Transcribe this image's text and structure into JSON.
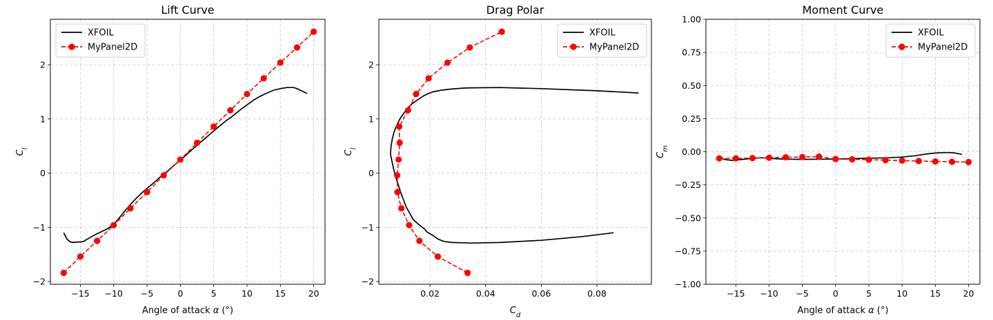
{
  "chart_data": [
    {
      "type": "line",
      "title": "Lift Curve",
      "xlabel": "Angle of attack α (°)",
      "ylabel": "C_l",
      "xlim": [
        -19.5,
        21.7
      ],
      "ylim": [
        -2.05,
        2.84
      ],
      "xticks": [
        -15,
        -10,
        -5,
        0,
        5,
        10,
        15,
        20
      ],
      "yticks": [
        -2,
        -1,
        0,
        1,
        2
      ],
      "xticklabels": [
        "−15",
        "−10",
        "−5",
        "0",
        "5",
        "10",
        "15",
        "20"
      ],
      "yticklabels": [
        "−2",
        "−1",
        "0",
        "1",
        "2"
      ],
      "grid": true,
      "legend": "top-left",
      "series": [
        {
          "name": "XFOIL",
          "color": "#000000",
          "style": "solid",
          "marker": "none",
          "x": [
            -17.5,
            -17.0,
            -16.5,
            -16.0,
            -15.5,
            -15.0,
            -14.5,
            -14.0,
            -13.0,
            -12.0,
            -11.0,
            -10.0,
            -9.0,
            -8.0,
            -7.0,
            -6.0,
            -5.0,
            -4.0,
            -3.0,
            -2.0,
            -1.0,
            0.0,
            1.0,
            2.0,
            3.0,
            4.0,
            5.0,
            6.0,
            7.0,
            8.0,
            9.0,
            10.0,
            11.0,
            12.0,
            13.0,
            14.0,
            15.0,
            16.0,
            16.5,
            17.0,
            17.5,
            18.0,
            19.0
          ],
          "y": [
            -1.1,
            -1.22,
            -1.27,
            -1.28,
            -1.27,
            -1.27,
            -1.26,
            -1.22,
            -1.15,
            -1.09,
            -1.03,
            -0.95,
            -0.8,
            -0.65,
            -0.51,
            -0.39,
            -0.28,
            -0.18,
            -0.07,
            0.03,
            0.14,
            0.24,
            0.35,
            0.46,
            0.57,
            0.67,
            0.78,
            0.88,
            0.98,
            1.07,
            1.17,
            1.26,
            1.35,
            1.42,
            1.48,
            1.53,
            1.56,
            1.58,
            1.58,
            1.58,
            1.56,
            1.53,
            1.47
          ]
        },
        {
          "name": "MyPanel2D",
          "color": "#ff0000",
          "style": "dashed",
          "marker": "circle",
          "x": [
            -17.5,
            -15.0,
            -12.5,
            -10.0,
            -7.5,
            -5.0,
            -2.5,
            0.0,
            2.5,
            5.0,
            7.5,
            10.0,
            12.5,
            15.0,
            17.5,
            20.0
          ],
          "y": [
            -1.84,
            -1.54,
            -1.25,
            -0.96,
            -0.65,
            -0.35,
            -0.04,
            0.25,
            0.56,
            0.86,
            1.16,
            1.46,
            1.75,
            2.04,
            2.32,
            2.61
          ]
        }
      ]
    },
    {
      "type": "line",
      "title": "Drag Polar",
      "xlabel": "C_d",
      "ylabel": "C_l",
      "xlim": [
        0.0016,
        0.0996
      ],
      "ylim": [
        -2.05,
        2.84
      ],
      "xticks": [
        0.02,
        0.04,
        0.06,
        0.08
      ],
      "yticks": [
        -2,
        -1,
        0,
        1,
        2
      ],
      "xticklabels": [
        "0.02",
        "0.04",
        "0.06",
        "0.08"
      ],
      "yticklabels": [
        "−2",
        "−1",
        "0",
        "1",
        "2"
      ],
      "grid": true,
      "legend": "top-right",
      "series": [
        {
          "name": "XFOIL",
          "color": "#000000",
          "style": "solid",
          "marker": "none",
          "x": [
            0.086,
            0.075,
            0.06,
            0.045,
            0.035,
            0.028,
            0.025,
            0.023,
            0.021,
            0.019,
            0.018,
            0.016,
            0.014,
            0.0128,
            0.0115,
            0.0105,
            0.0095,
            0.0085,
            0.0075,
            0.0068,
            0.0062,
            0.0058,
            0.006,
            0.0065,
            0.0072,
            0.0082,
            0.0092,
            0.0105,
            0.0118,
            0.0135,
            0.0155,
            0.0175,
            0.019,
            0.021,
            0.024,
            0.027,
            0.032,
            0.035,
            0.045,
            0.06,
            0.08,
            0.095
          ],
          "y": [
            -1.1,
            -1.17,
            -1.24,
            -1.28,
            -1.29,
            -1.28,
            -1.26,
            -1.22,
            -1.15,
            -1.09,
            -1.03,
            -0.95,
            -0.86,
            -0.75,
            -0.63,
            -0.5,
            -0.36,
            -0.2,
            -0.05,
            0.1,
            0.25,
            0.35,
            0.5,
            0.65,
            0.78,
            0.9,
            1.0,
            1.1,
            1.19,
            1.28,
            1.35,
            1.42,
            1.46,
            1.5,
            1.53,
            1.55,
            1.57,
            1.575,
            1.58,
            1.56,
            1.52,
            1.48
          ]
        },
        {
          "name": "MyPanel2D",
          "color": "#ff0000",
          "style": "dashed",
          "marker": "circle",
          "x": [
            0.0335,
            0.0228,
            0.0162,
            0.0125,
            0.0097,
            0.0083,
            0.0082,
            0.0087,
            0.0091,
            0.0089,
            0.0121,
            0.015,
            0.0195,
            0.0263,
            0.0343,
            0.0458
          ],
          "y": [
            -1.84,
            -1.54,
            -1.25,
            -0.96,
            -0.65,
            -0.35,
            -0.04,
            0.25,
            0.56,
            0.86,
            1.16,
            1.46,
            1.75,
            2.04,
            2.32,
            2.61
          ]
        }
      ]
    },
    {
      "type": "line",
      "title": "Moment Curve",
      "xlabel": "Angle of attack α (°)",
      "ylabel": "C_m",
      "xlim": [
        -19.5,
        21.7
      ],
      "ylim": [
        -1.0,
        1.0
      ],
      "xticks": [
        -15,
        -10,
        -5,
        0,
        5,
        10,
        15,
        20
      ],
      "yticks": [
        -1.0,
        -0.75,
        -0.5,
        -0.25,
        0.0,
        0.25,
        0.5,
        0.75,
        1.0
      ],
      "xticklabels": [
        "−15",
        "−10",
        "−5",
        "0",
        "5",
        "10",
        "15",
        "20"
      ],
      "yticklabels": [
        "−1.00",
        "−0.75",
        "−0.50",
        "−0.25",
        "0.00",
        "0.25",
        "0.50",
        "0.75",
        "1.00"
      ],
      "grid": true,
      "legend": "top-right",
      "series": [
        {
          "name": "XFOIL",
          "color": "#000000",
          "style": "solid",
          "marker": "none",
          "x": [
            -17.5,
            -16.5,
            -15.5,
            -14.5,
            -13.5,
            -12.5,
            -11.0,
            -10.0,
            -8.0,
            -6.0,
            -4.0,
            -2.0,
            0.0,
            2.0,
            4.0,
            6.0,
            8.0,
            10.0,
            11.0,
            12.0,
            13.0,
            14.0,
            15.0,
            16.0,
            16.5,
            17.0,
            18.0,
            19.0
          ],
          "y": [
            -0.045,
            -0.06,
            -0.065,
            -0.06,
            -0.055,
            -0.05,
            -0.045,
            -0.05,
            -0.055,
            -0.057,
            -0.057,
            -0.056,
            -0.055,
            -0.053,
            -0.05,
            -0.048,
            -0.045,
            -0.04,
            -0.035,
            -0.03,
            -0.022,
            -0.015,
            -0.01,
            -0.007,
            -0.006,
            -0.006,
            -0.01,
            -0.02
          ]
        },
        {
          "name": "MyPanel2D",
          "color": "#ff0000",
          "style": "dashed",
          "marker": "circle",
          "x": [
            -17.5,
            -15.0,
            -12.5,
            -10.0,
            -7.5,
            -5.0,
            -2.5,
            0.0,
            2.5,
            5.0,
            7.5,
            10.0,
            12.5,
            15.0,
            17.5,
            20.0
          ],
          "y": [
            -0.05,
            -0.05,
            -0.048,
            -0.045,
            -0.042,
            -0.04,
            -0.037,
            -0.055,
            -0.057,
            -0.06,
            -0.063,
            -0.067,
            -0.07,
            -0.073,
            -0.076,
            -0.078
          ]
        }
      ]
    }
  ]
}
